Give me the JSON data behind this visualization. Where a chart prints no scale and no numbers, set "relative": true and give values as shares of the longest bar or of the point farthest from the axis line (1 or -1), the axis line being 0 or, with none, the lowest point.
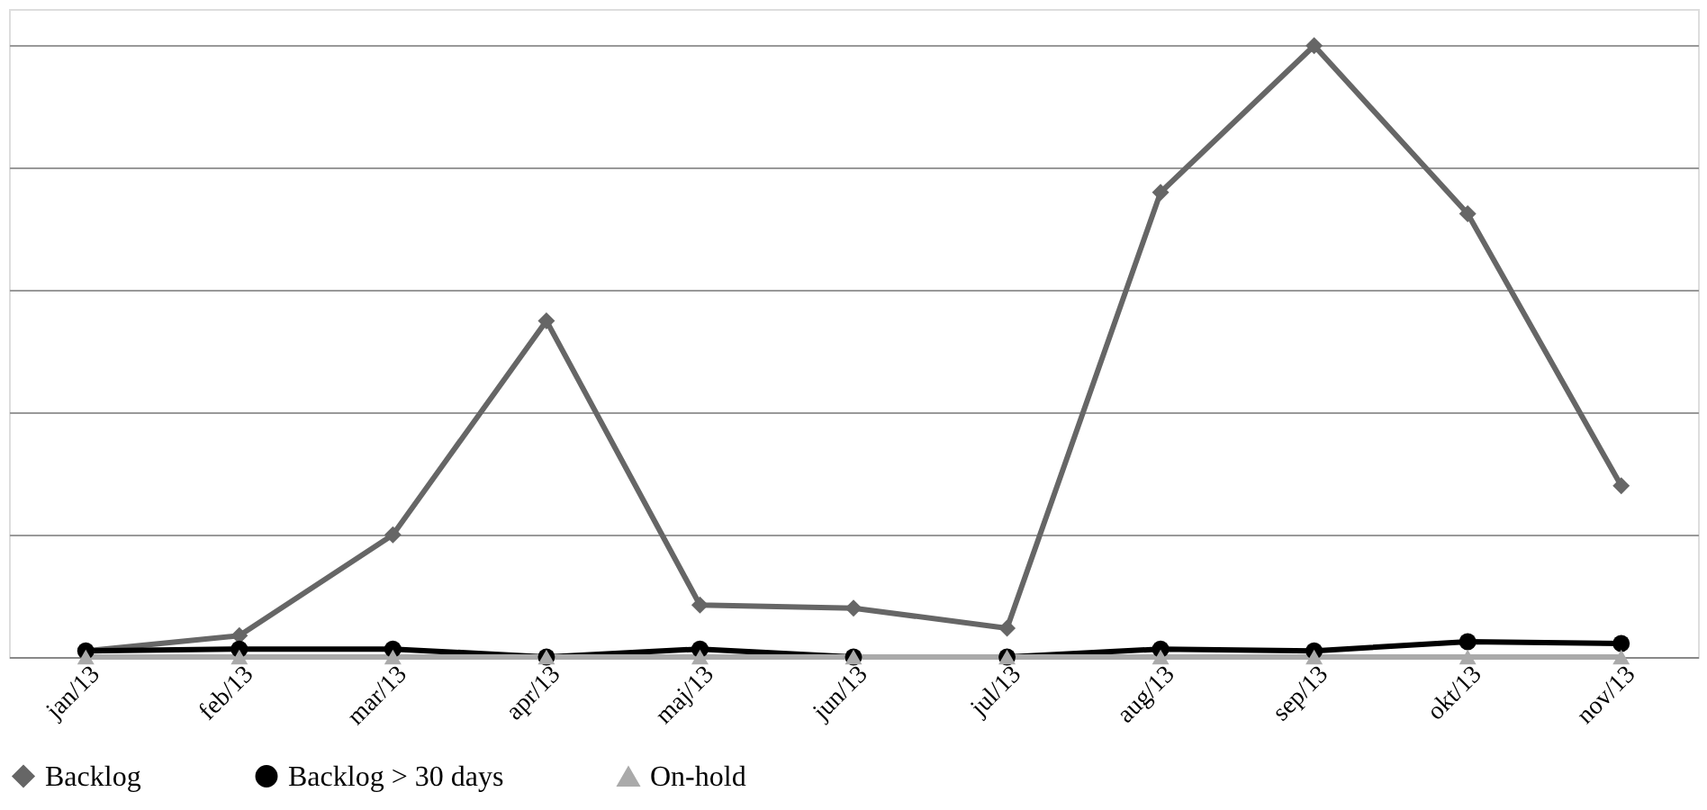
{
  "chart_data": {
    "type": "line",
    "relative": true,
    "grid": "y",
    "legend": "bottom",
    "categories": [
      "jan/13",
      "feb/13",
      "mar/13",
      "apr/13",
      "maj/13",
      "jun/13",
      "jul/13",
      "aug/13",
      "sep/13",
      "okt/13",
      "nov/13"
    ],
    "series": [
      {
        "name": "Backlog",
        "color": "#666666",
        "marker": "diamond",
        "values": [
          0.01,
          0.035,
          0.2,
          0.55,
          0.085,
          0.08,
          0.047,
          0.76,
          1,
          0.725,
          0.28
        ]
      },
      {
        "name": "Backlog > 30 days",
        "color": "#000000",
        "marker": "circle",
        "values": [
          0.01,
          0.013,
          0.013,
          0,
          0.013,
          0,
          0,
          0.013,
          0.01,
          0.025,
          0.022
        ]
      },
      {
        "name": "On-hold",
        "color": "#aaaaaa",
        "marker": "triangle",
        "values": [
          0,
          0,
          0,
          0,
          0,
          0,
          0,
          0,
          0,
          0,
          0
        ]
      }
    ]
  }
}
